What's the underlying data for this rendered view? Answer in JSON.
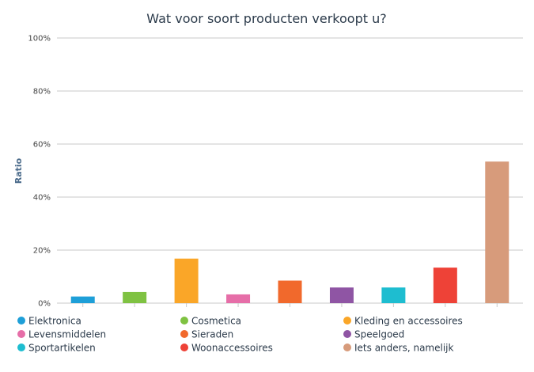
{
  "chart_data": {
    "type": "bar",
    "title": "Wat voor soort producten verkoopt u?",
    "xlabel": "",
    "ylabel": "Ratio",
    "ylim": [
      0,
      100
    ],
    "y_ticks": [
      "0%",
      "20%",
      "40%",
      "60%",
      "80%",
      "100%"
    ],
    "grid": true,
    "legend_position": "bottom",
    "categories": [
      "Elektronica",
      "Cosmetica",
      "Kleding en accessoires",
      "Levensmiddelen",
      "Sieraden",
      "Speelgoed",
      "Sportartikelen",
      "Woonaccessoires",
      "Iets anders, namelijk"
    ],
    "values": [
      2.5,
      4.2,
      16.8,
      3.3,
      8.5,
      5.9,
      5.9,
      13.4,
      53.4
    ],
    "colors": [
      "#1e9fd8",
      "#7fc242",
      "#faa628",
      "#e66ea8",
      "#f1692c",
      "#8f55a4",
      "#1ebdd0",
      "#ee4237",
      "#d79b7b"
    ]
  }
}
